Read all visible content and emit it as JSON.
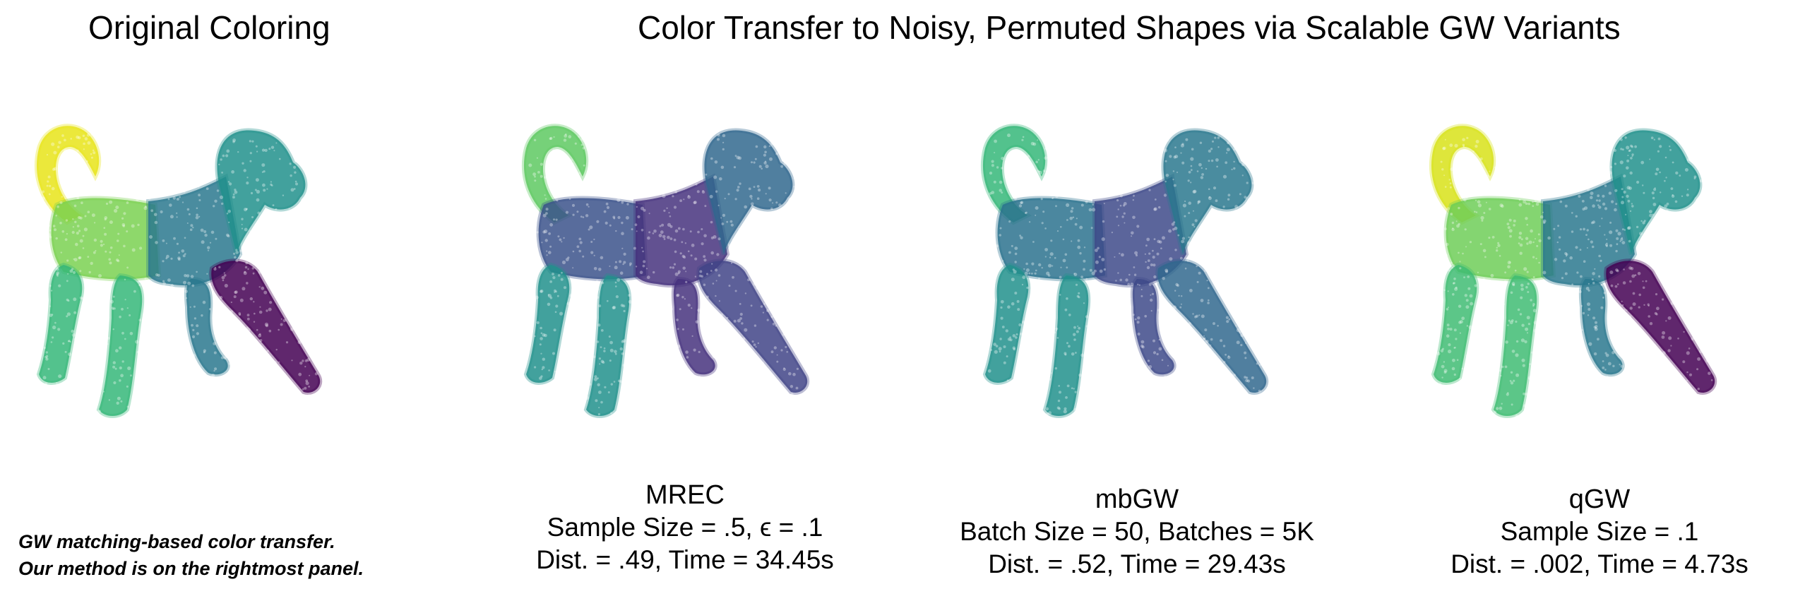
{
  "titles": {
    "left": "Original Coloring",
    "main": "Color Transfer to Noisy, Permuted Shapes via Scalable GW Variants"
  },
  "panels": [
    {
      "id": "original",
      "colors": {
        "tail": "#e8e419",
        "front": "#7ad151",
        "body": "#2a788e",
        "head": "#21918c",
        "hindleg": "#440154",
        "frontleg": "#35b779"
      }
    },
    {
      "id": "mrec",
      "name": "MREC",
      "line1": "Sample Size = .5, ϵ = .1",
      "line2": "Dist. = .49, Time = 34.45s",
      "colors": {
        "tail": "#5ec962",
        "front": "#3b528b",
        "body": "#46327e",
        "head": "#31688e",
        "hindleg": "#414487",
        "frontleg": "#21918c"
      }
    },
    {
      "id": "mbgw",
      "name": "mbGW",
      "line1": "Batch Size = 50, Batches = 5K",
      "line2": "Dist. = .52, Time = 29.43s",
      "colors": {
        "tail": "#35b779",
        "front": "#2c728e",
        "body": "#3e4a89",
        "head": "#2a788e",
        "hindleg": "#31688e",
        "frontleg": "#21918c"
      }
    },
    {
      "id": "qgw",
      "name": "qGW",
      "line1": "Sample Size = .1",
      "line2": "Dist. = .002, Time = 4.73s",
      "colors": {
        "tail": "#d8e219",
        "front": "#6ece58",
        "body": "#2a788e",
        "head": "#21918c",
        "hindleg": "#440154",
        "frontleg": "#3fbc73"
      }
    }
  ],
  "note": {
    "line1": "GW matching-based color transfer.",
    "line2": "Our method is on the rightmost panel."
  }
}
